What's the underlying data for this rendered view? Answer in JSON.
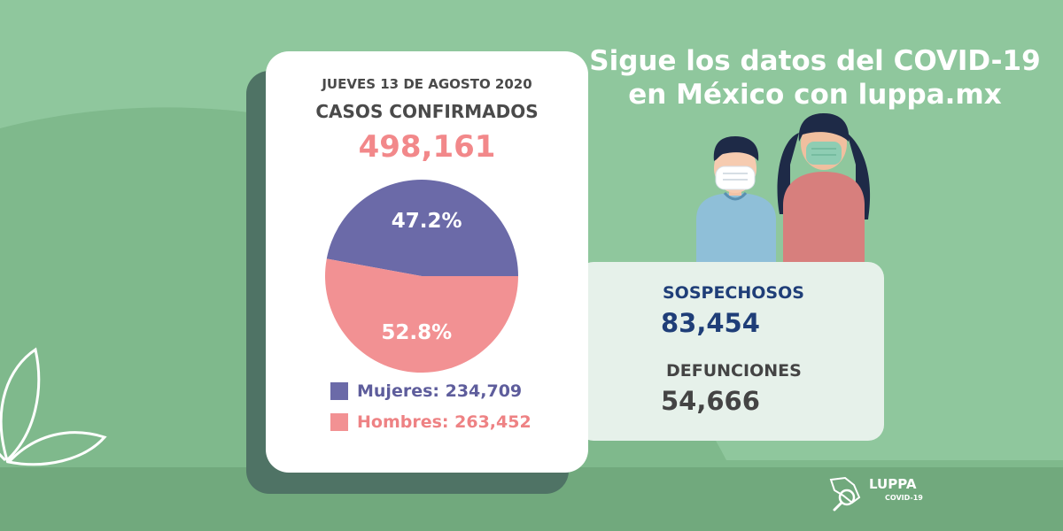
{
  "headline": {
    "line1": "Sigue los datos del COVID-19",
    "line2": "en México con luppa.mx"
  },
  "colors": {
    "background": "#8fc79d",
    "women": "#6b6aa8",
    "men": "#f29193",
    "total_number": "#f2888a",
    "suspects_text": "#1f3e78"
  },
  "chart_data": {
    "type": "pie",
    "title": "CASOS CONFIRMADOS",
    "subtitle": "JUEVES 13 DE AGOSTO 2020",
    "total": "498,161",
    "slices": [
      {
        "name": "Mujeres",
        "value": 234709,
        "value_label": "234,709",
        "percent": 47.2,
        "percent_label": "47.2%",
        "color": "#6b6aa8"
      },
      {
        "name": "Hombres",
        "value": 263452,
        "value_label": "263,452",
        "percent": 52.8,
        "percent_label": "52.8%",
        "color": "#f29193"
      }
    ],
    "legend_position": "bottom"
  },
  "legend": {
    "women": "Mujeres: 234,709",
    "men": "Hombres: 263,452"
  },
  "stats": {
    "suspects_label": "SOSPECHOSOS",
    "suspects_value": "83,454",
    "deaths_label": "DEFUNCIONES",
    "deaths_value": "54,666"
  },
  "brand": {
    "name": "LUPPA",
    "sub": "COVID-19"
  }
}
